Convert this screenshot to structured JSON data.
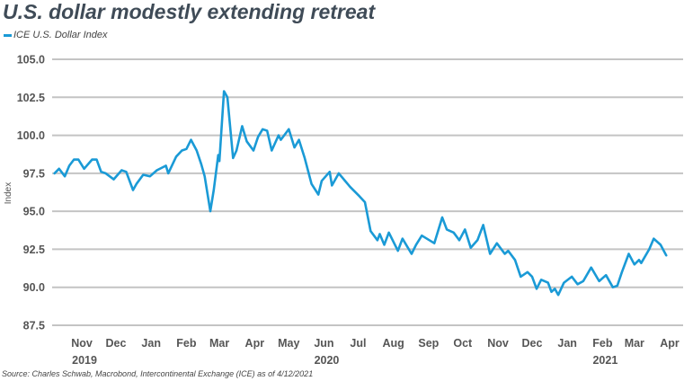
{
  "chart_data": {
    "type": "line",
    "title": "U.S. dollar modestly extending retreat",
    "ylabel": "Index",
    "xlabel": "",
    "source": "Source: Charles Schwab, Macrobond, Intercontinental Exchange (ICE) as of 4/12/2021",
    "ylim": [
      87.5,
      105.0
    ],
    "yticks": [
      "87.5",
      "90.0",
      "92.5",
      "95.0",
      "97.5",
      "100.0",
      "102.5",
      "105.0"
    ],
    "xlim": [
      "2019-10-10",
      "2021-04-30"
    ],
    "xticks": [
      {
        "date": "2019-11-15",
        "label": "Nov",
        "year": "2019"
      },
      {
        "date": "2019-12-15",
        "label": "Dec"
      },
      {
        "date": "2020-01-15",
        "label": "Jan"
      },
      {
        "date": "2020-02-15",
        "label": "Feb"
      },
      {
        "date": "2020-03-15",
        "label": "Mar"
      },
      {
        "date": "2020-04-15",
        "label": "Apr"
      },
      {
        "date": "2020-05-15",
        "label": "May"
      },
      {
        "date": "2020-06-15",
        "label": "Jun",
        "year": "2020"
      },
      {
        "date": "2020-07-15",
        "label": "Jul"
      },
      {
        "date": "2020-08-15",
        "label": "Aug"
      },
      {
        "date": "2020-09-15",
        "label": "Sep"
      },
      {
        "date": "2020-10-15",
        "label": "Oct"
      },
      {
        "date": "2020-11-15",
        "label": "Nov"
      },
      {
        "date": "2020-12-15",
        "label": "Dec"
      },
      {
        "date": "2021-01-15",
        "label": "Jan"
      },
      {
        "date": "2021-02-15",
        "label": "Feb",
        "year": "2021"
      },
      {
        "date": "2021-03-15",
        "label": "Mar"
      },
      {
        "date": "2021-04-15",
        "label": "Apr"
      }
    ],
    "grid": "horizontal",
    "legend": "top-left",
    "colors": {
      "line": "#1a9ad6",
      "grid": "#c4c4c4",
      "title": "#3f4b57"
    },
    "series": [
      {
        "name": "ICE U.S. Dollar Index",
        "points": [
          [
            "2019-10-22",
            97.5
          ],
          [
            "2019-10-26",
            97.8
          ],
          [
            "2019-10-31",
            97.3
          ],
          [
            "2019-11-04",
            98.0
          ],
          [
            "2019-11-08",
            98.4
          ],
          [
            "2019-11-12",
            98.4
          ],
          [
            "2019-11-17",
            97.8
          ],
          [
            "2019-11-24",
            98.4
          ],
          [
            "2019-11-28",
            98.4
          ],
          [
            "2019-12-02",
            97.6
          ],
          [
            "2019-12-06",
            97.5
          ],
          [
            "2019-12-13",
            97.1
          ],
          [
            "2019-12-20",
            97.7
          ],
          [
            "2019-12-24",
            97.6
          ],
          [
            "2019-12-30",
            96.4
          ],
          [
            "2020-01-02",
            96.8
          ],
          [
            "2020-01-08",
            97.4
          ],
          [
            "2020-01-14",
            97.3
          ],
          [
            "2020-01-20",
            97.7
          ],
          [
            "2020-01-28",
            98.0
          ],
          [
            "2020-01-30",
            97.5
          ],
          [
            "2020-02-06",
            98.6
          ],
          [
            "2020-02-11",
            99.0
          ],
          [
            "2020-02-15",
            99.1
          ],
          [
            "2020-02-19",
            99.7
          ],
          [
            "2020-02-24",
            99.0
          ],
          [
            "2020-02-28",
            98.1
          ],
          [
            "2020-03-02",
            97.3
          ],
          [
            "2020-03-07",
            95.0
          ],
          [
            "2020-03-10",
            96.4
          ],
          [
            "2020-03-14",
            98.7
          ],
          [
            "2020-03-15",
            98.3
          ],
          [
            "2020-03-19",
            102.9
          ],
          [
            "2020-03-22",
            102.5
          ],
          [
            "2020-03-27",
            98.5
          ],
          [
            "2020-03-30",
            99.0
          ],
          [
            "2020-04-04",
            100.6
          ],
          [
            "2020-04-08",
            99.6
          ],
          [
            "2020-04-14",
            99.0
          ],
          [
            "2020-04-18",
            99.9
          ],
          [
            "2020-04-22",
            100.4
          ],
          [
            "2020-04-26",
            100.3
          ],
          [
            "2020-04-30",
            99.0
          ],
          [
            "2020-05-06",
            100.0
          ],
          [
            "2020-05-08",
            99.7
          ],
          [
            "2020-05-15",
            100.4
          ],
          [
            "2020-05-20",
            99.2
          ],
          [
            "2020-05-24",
            99.7
          ],
          [
            "2020-05-29",
            98.5
          ],
          [
            "2020-06-04",
            96.8
          ],
          [
            "2020-06-10",
            96.1
          ],
          [
            "2020-06-13",
            97.0
          ],
          [
            "2020-06-20",
            97.6
          ],
          [
            "2020-06-22",
            96.7
          ],
          [
            "2020-06-28",
            97.5
          ],
          [
            "2020-07-08",
            96.6
          ],
          [
            "2020-07-16",
            96.0
          ],
          [
            "2020-07-21",
            95.6
          ],
          [
            "2020-07-26",
            93.7
          ],
          [
            "2020-08-01",
            93.1
          ],
          [
            "2020-08-03",
            93.5
          ],
          [
            "2020-08-07",
            92.8
          ],
          [
            "2020-08-11",
            93.6
          ],
          [
            "2020-08-19",
            92.4
          ],
          [
            "2020-08-23",
            93.2
          ],
          [
            "2020-08-31",
            92.2
          ],
          [
            "2020-09-04",
            92.8
          ],
          [
            "2020-09-09",
            93.4
          ],
          [
            "2020-09-20",
            92.9
          ],
          [
            "2020-09-27",
            94.6
          ],
          [
            "2020-10-01",
            93.8
          ],
          [
            "2020-10-07",
            93.6
          ],
          [
            "2020-10-12",
            93.1
          ],
          [
            "2020-10-17",
            93.8
          ],
          [
            "2020-10-22",
            92.6
          ],
          [
            "2020-10-28",
            93.1
          ],
          [
            "2020-11-02",
            94.1
          ],
          [
            "2020-11-08",
            92.2
          ],
          [
            "2020-11-14",
            92.9
          ],
          [
            "2020-11-21",
            92.2
          ],
          [
            "2020-11-24",
            92.4
          ],
          [
            "2020-11-30",
            91.8
          ],
          [
            "2020-12-05",
            90.7
          ],
          [
            "2020-12-11",
            91.0
          ],
          [
            "2020-12-15",
            90.7
          ],
          [
            "2020-12-19",
            89.9
          ],
          [
            "2020-12-23",
            90.5
          ],
          [
            "2020-12-29",
            90.3
          ],
          [
            "2021-01-01",
            89.7
          ],
          [
            "2021-01-04",
            89.9
          ],
          [
            "2021-01-07",
            89.5
          ],
          [
            "2021-01-12",
            90.3
          ],
          [
            "2021-01-19",
            90.7
          ],
          [
            "2021-01-24",
            90.2
          ],
          [
            "2021-01-29",
            90.4
          ],
          [
            "2021-02-05",
            91.3
          ],
          [
            "2021-02-12",
            90.4
          ],
          [
            "2021-02-18",
            90.8
          ],
          [
            "2021-02-24",
            90.0
          ],
          [
            "2021-02-28",
            90.1
          ],
          [
            "2021-03-04",
            91.0
          ],
          [
            "2021-03-10",
            92.2
          ],
          [
            "2021-03-15",
            91.5
          ],
          [
            "2021-03-19",
            91.8
          ],
          [
            "2021-03-21",
            91.6
          ],
          [
            "2021-03-28",
            92.5
          ],
          [
            "2021-04-01",
            93.2
          ],
          [
            "2021-04-07",
            92.8
          ],
          [
            "2021-04-12",
            92.1
          ]
        ]
      }
    ]
  }
}
